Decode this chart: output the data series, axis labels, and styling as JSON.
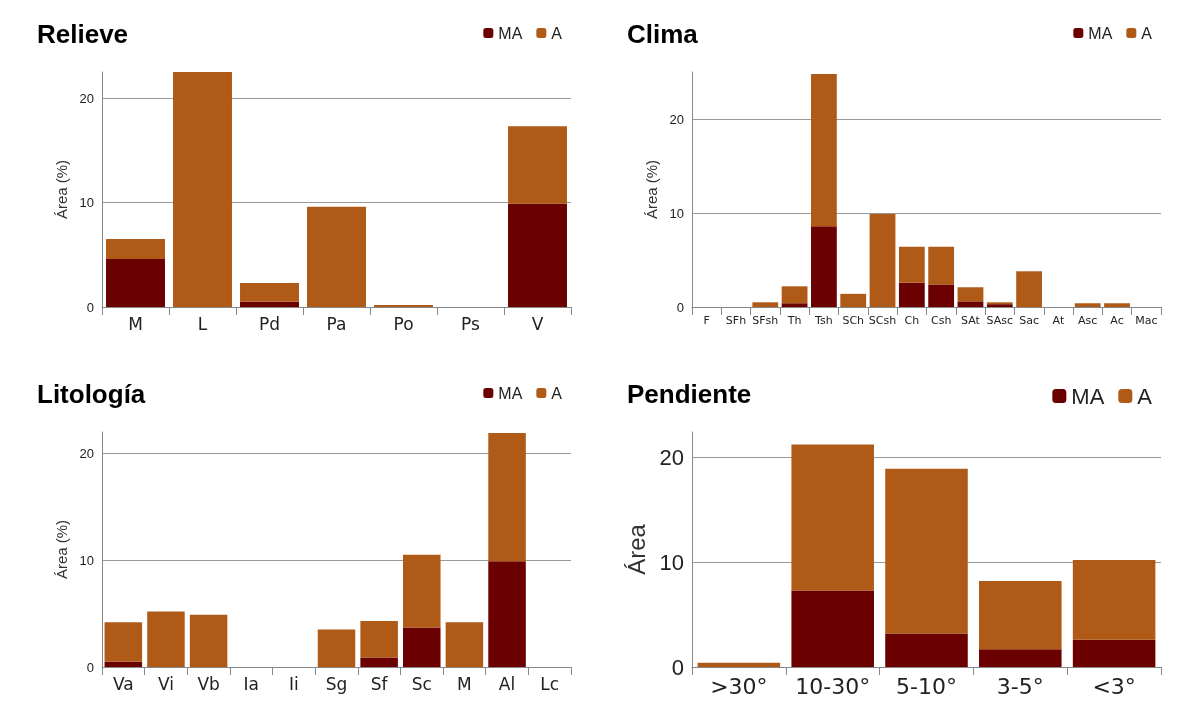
{
  "chart_data": [
    {
      "type": "bar",
      "title": "Relieve",
      "ylabel": "Área (%)",
      "categories": [
        "M",
        "L",
        "Pd",
        "Pa",
        "Po",
        "Ps",
        "V"
      ],
      "stacked": true,
      "legend": "top right",
      "grid": "y",
      "ylim": [
        0,
        22.5
      ],
      "yticks": [
        0,
        10,
        20
      ],
      "series": [
        {
          "name": "MA",
          "color": "#6b0000",
          "values": [
            4.6,
            0,
            0.5,
            0,
            0,
            0,
            9.9
          ]
        },
        {
          "name": "A",
          "color": "#b05a17",
          "values": [
            1.9,
            22.5,
            1.8,
            9.6,
            0.2,
            0,
            7.4
          ]
        }
      ]
    },
    {
      "type": "bar",
      "title": "Clima",
      "ylabel": "Área (%)",
      "categories": [
        "F",
        "SFh",
        "SFsh",
        "Th",
        "Tsh",
        "SCh",
        "SCsh",
        "Ch",
        "Csh",
        "SAt",
        "SAsc",
        "Sac",
        "At",
        "Asc",
        "Ac",
        "Mac"
      ],
      "stacked": true,
      "legend": "top right",
      "grid": "y",
      "ylim": [
        0,
        25
      ],
      "yticks": [
        0,
        10,
        20
      ],
      "series": [
        {
          "name": "MA",
          "color": "#6b0000",
          "values": [
            0,
            0,
            0,
            0.4,
            8.6,
            0,
            0,
            2.6,
            2.4,
            0.6,
            0.3,
            0,
            0,
            0,
            0,
            0
          ]
        },
        {
          "name": "A",
          "color": "#b05a17",
          "values": [
            0,
            0,
            0.5,
            1.8,
            16.2,
            1.4,
            9.9,
            3.8,
            4.0,
            1.5,
            0.2,
            3.8,
            0,
            0.4,
            0.4,
            0
          ]
        }
      ]
    },
    {
      "type": "bar",
      "title": "Litología",
      "ylabel": "Área (%)",
      "categories": [
        "Va",
        "Vi",
        "Vb",
        "Ia",
        "Ii",
        "Sg",
        "Sf",
        "Sc",
        "M",
        "Al",
        "Lc"
      ],
      "stacked": true,
      "legend": "top right",
      "grid": "y",
      "ylim": [
        0,
        22
      ],
      "yticks": [
        0,
        10,
        20
      ],
      "series": [
        {
          "name": "MA",
          "color": "#6b0000",
          "values": [
            0.5,
            0,
            0,
            0,
            0,
            0,
            0.9,
            3.7,
            0,
            9.9,
            0
          ]
        },
        {
          "name": "A",
          "color": "#b05a17",
          "values": [
            3.7,
            5.2,
            4.9,
            0,
            0,
            3.5,
            3.4,
            6.8,
            4.2,
            12.0,
            0
          ]
        }
      ]
    },
    {
      "type": "bar",
      "title": "Pendiente",
      "ylabel": "Área",
      "categories": [
        ">30°",
        "10-30°",
        "5-10°",
        "3-5°",
        "<3°"
      ],
      "stacked": true,
      "legend": "top right",
      "grid": "y",
      "ylim": [
        0,
        22.4
      ],
      "yticks": [
        0,
        10,
        20
      ],
      "series": [
        {
          "name": "MA",
          "color": "#6b0000",
          "values": [
            0,
            7.3,
            3.2,
            1.7,
            2.6
          ]
        },
        {
          "name": "A",
          "color": "#b05a17",
          "values": [
            0.4,
            13.9,
            15.7,
            6.5,
            7.6
          ]
        }
      ]
    }
  ]
}
